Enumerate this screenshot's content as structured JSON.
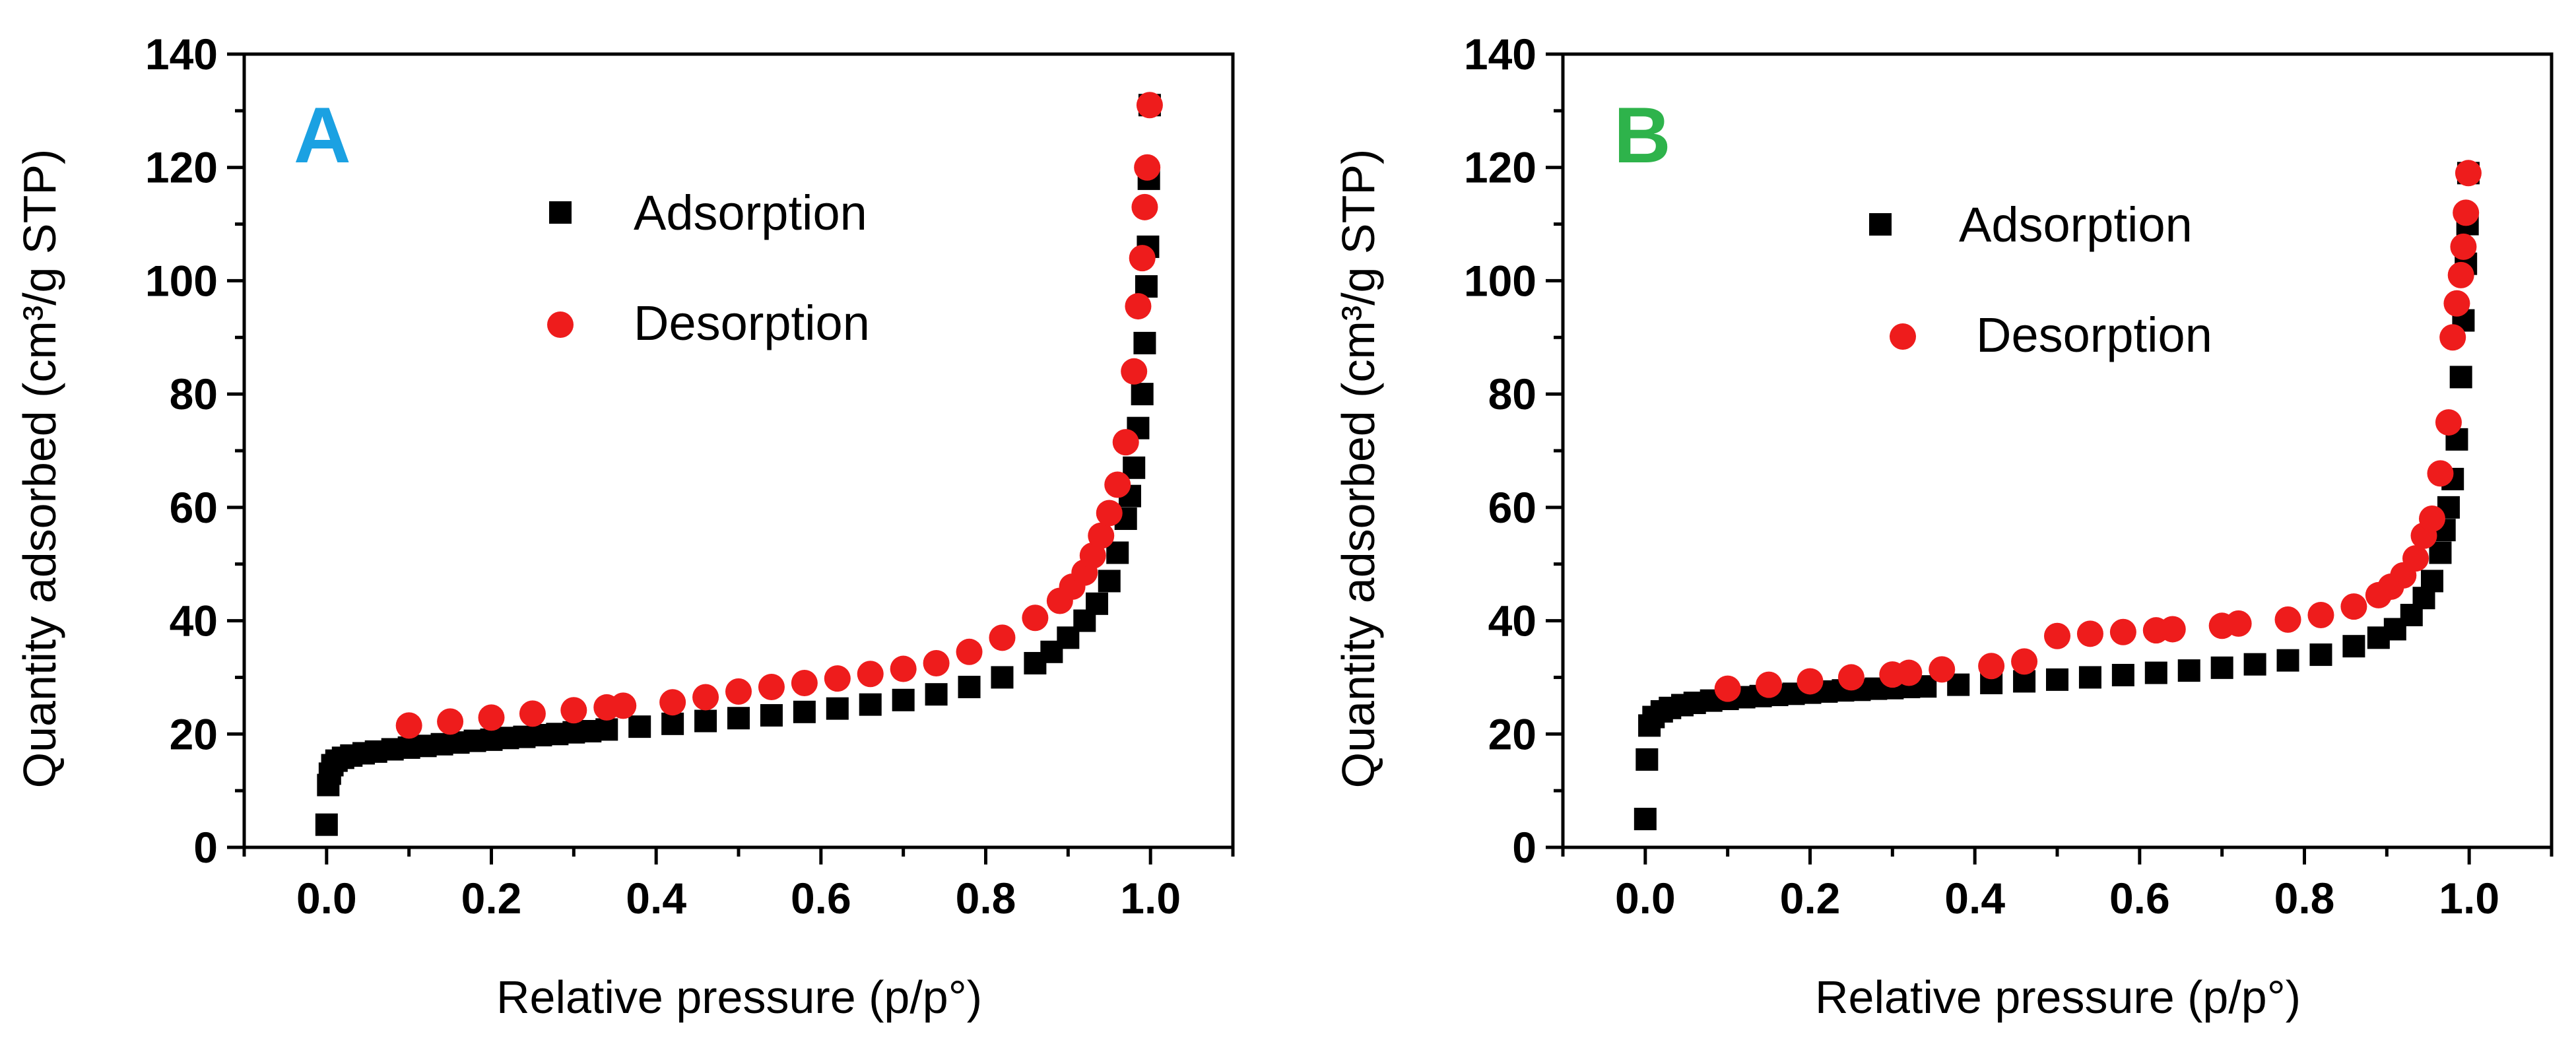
{
  "chart_data": [
    {
      "type": "scatter",
      "panel_label": "A",
      "panel_label_color": "#1ba1e2",
      "xlabel": "Relative pressure (p/p°)",
      "ylabel": "Quantity adsorbed (cm³/g STP)",
      "xlim": [
        -0.1,
        1.1
      ],
      "ylim": [
        0,
        140
      ],
      "xticks": [
        "0.0",
        "0.2",
        "0.4",
        "0.6",
        "0.8",
        "1.0"
      ],
      "yticks": [
        "0",
        "20",
        "40",
        "60",
        "80",
        "100",
        "120",
        "140"
      ],
      "legend_position": "upper-left",
      "series": [
        {
          "name": "Adsorption",
          "marker": "square",
          "color": "#000000",
          "points": [
            [
              0.0,
              4
            ],
            [
              0.002,
              11
            ],
            [
              0.004,
              13
            ],
            [
              0.007,
              14.5
            ],
            [
              0.012,
              15.3
            ],
            [
              0.02,
              15.8
            ],
            [
              0.03,
              16.2
            ],
            [
              0.045,
              16.6
            ],
            [
              0.06,
              16.9
            ],
            [
              0.08,
              17.3
            ],
            [
              0.1,
              17.6
            ],
            [
              0.12,
              17.9
            ],
            [
              0.14,
              18.2
            ],
            [
              0.16,
              18.5
            ],
            [
              0.18,
              18.8
            ],
            [
              0.2,
              19
            ],
            [
              0.22,
              19.3
            ],
            [
              0.24,
              19.5
            ],
            [
              0.26,
              19.8
            ],
            [
              0.28,
              20
            ],
            [
              0.3,
              20.3
            ],
            [
              0.32,
              20.5
            ],
            [
              0.34,
              20.8
            ],
            [
              0.38,
              21.3
            ],
            [
              0.42,
              21.8
            ],
            [
              0.46,
              22.3
            ],
            [
              0.5,
              22.8
            ],
            [
              0.54,
              23.3
            ],
            [
              0.58,
              23.9
            ],
            [
              0.62,
              24.5
            ],
            [
              0.66,
              25.2
            ],
            [
              0.7,
              26
            ],
            [
              0.74,
              27
            ],
            [
              0.78,
              28.3
            ],
            [
              0.82,
              30
            ],
            [
              0.86,
              32.5
            ],
            [
              0.88,
              34.5
            ],
            [
              0.9,
              37
            ],
            [
              0.92,
              40
            ],
            [
              0.935,
              43
            ],
            [
              0.95,
              47
            ],
            [
              0.96,
              52
            ],
            [
              0.97,
              58
            ],
            [
              0.975,
              62
            ],
            [
              0.98,
              67
            ],
            [
              0.985,
              74
            ],
            [
              0.99,
              80
            ],
            [
              0.993,
              89
            ],
            [
              0.995,
              99
            ],
            [
              0.997,
              106
            ],
            [
              0.998,
              118
            ],
            [
              0.999,
              131
            ]
          ]
        },
        {
          "name": "Desorption",
          "marker": "circle",
          "color": "#ee1c1c",
          "points": [
            [
              0.1,
              21.5
            ],
            [
              0.15,
              22.2
            ],
            [
              0.2,
              22.9
            ],
            [
              0.25,
              23.6
            ],
            [
              0.3,
              24.2
            ],
            [
              0.34,
              24.7
            ],
            [
              0.36,
              25
            ],
            [
              0.42,
              25.6
            ],
            [
              0.46,
              26.5
            ],
            [
              0.5,
              27.5
            ],
            [
              0.54,
              28.3
            ],
            [
              0.58,
              29
            ],
            [
              0.62,
              29.8
            ],
            [
              0.66,
              30.6
            ],
            [
              0.7,
              31.5
            ],
            [
              0.74,
              32.5
            ],
            [
              0.78,
              34.5
            ],
            [
              0.82,
              37
            ],
            [
              0.86,
              40.5
            ],
            [
              0.89,
              43.5
            ],
            [
              0.905,
              46
            ],
            [
              0.92,
              48.5
            ],
            [
              0.93,
              51.5
            ],
            [
              0.94,
              55
            ],
            [
              0.95,
              59
            ],
            [
              0.96,
              64
            ],
            [
              0.97,
              71.5
            ],
            [
              0.98,
              84
            ],
            [
              0.985,
              95.5
            ],
            [
              0.99,
              104
            ],
            [
              0.993,
              113
            ],
            [
              0.996,
              120
            ],
            [
              0.999,
              131
            ]
          ]
        }
      ]
    },
    {
      "type": "scatter",
      "panel_label": "B",
      "panel_label_color": "#2eb34b",
      "xlabel": "Relative pressure (p/p°)",
      "ylabel": "Quantity adsorbed (cm³/g STP)",
      "xlim": [
        -0.1,
        1.1
      ],
      "ylim": [
        0,
        140
      ],
      "xticks": [
        "0.0",
        "0.2",
        "0.4",
        "0.6",
        "0.8",
        "1.0"
      ],
      "yticks": [
        "0",
        "20",
        "40",
        "60",
        "80",
        "100",
        "120",
        "140"
      ],
      "legend_position": "upper-left",
      "series": [
        {
          "name": "Adsorption",
          "marker": "square",
          "color": "#000000",
          "points": [
            [
              0.0,
              5
            ],
            [
              0.002,
              15.5
            ],
            [
              0.005,
              21.5
            ],
            [
              0.01,
              23
            ],
            [
              0.02,
              24
            ],
            [
              0.03,
              24.6
            ],
            [
              0.045,
              25.1
            ],
            [
              0.06,
              25.5
            ],
            [
              0.08,
              25.9
            ],
            [
              0.1,
              26.2
            ],
            [
              0.12,
              26.5
            ],
            [
              0.14,
              26.7
            ],
            [
              0.16,
              26.9
            ],
            [
              0.18,
              27.1
            ],
            [
              0.2,
              27.3
            ],
            [
              0.22,
              27.5
            ],
            [
              0.24,
              27.7
            ],
            [
              0.26,
              27.8
            ],
            [
              0.28,
              28
            ],
            [
              0.3,
              28.1
            ],
            [
              0.32,
              28.3
            ],
            [
              0.34,
              28.4
            ],
            [
              0.38,
              28.7
            ],
            [
              0.42,
              29
            ],
            [
              0.46,
              29.3
            ],
            [
              0.5,
              29.6
            ],
            [
              0.54,
              30
            ],
            [
              0.58,
              30.4
            ],
            [
              0.62,
              30.8
            ],
            [
              0.66,
              31.2
            ],
            [
              0.7,
              31.7
            ],
            [
              0.74,
              32.3
            ],
            [
              0.78,
              33
            ],
            [
              0.82,
              34
            ],
            [
              0.86,
              35.5
            ],
            [
              0.89,
              37
            ],
            [
              0.91,
              38.5
            ],
            [
              0.93,
              41
            ],
            [
              0.945,
              44
            ],
            [
              0.955,
              47
            ],
            [
              0.965,
              52
            ],
            [
              0.97,
              56
            ],
            [
              0.975,
              60
            ],
            [
              0.98,
              65
            ],
            [
              0.985,
              72
            ],
            [
              0.99,
              83
            ],
            [
              0.993,
              93
            ],
            [
              0.996,
              103
            ],
            [
              0.998,
              110
            ],
            [
              0.999,
              119
            ]
          ]
        },
        {
          "name": "Desorption",
          "marker": "circle",
          "color": "#ee1c1c",
          "points": [
            [
              0.1,
              28
            ],
            [
              0.15,
              28.7
            ],
            [
              0.2,
              29.3
            ],
            [
              0.25,
              30
            ],
            [
              0.3,
              30.5
            ],
            [
              0.32,
              30.8
            ],
            [
              0.36,
              31.4
            ],
            [
              0.42,
              32
            ],
            [
              0.46,
              32.8
            ],
            [
              0.5,
              37.3
            ],
            [
              0.54,
              37.7
            ],
            [
              0.58,
              38
            ],
            [
              0.62,
              38.3
            ],
            [
              0.64,
              38.5
            ],
            [
              0.7,
              39.1
            ],
            [
              0.72,
              39.5
            ],
            [
              0.78,
              40.2
            ],
            [
              0.82,
              41
            ],
            [
              0.86,
              42.5
            ],
            [
              0.89,
              44.5
            ],
            [
              0.905,
              46
            ],
            [
              0.92,
              48
            ],
            [
              0.935,
              51
            ],
            [
              0.945,
              55
            ],
            [
              0.955,
              58
            ],
            [
              0.965,
              66
            ],
            [
              0.975,
              75
            ],
            [
              0.98,
              90
            ],
            [
              0.985,
              96
            ],
            [
              0.99,
              101
            ],
            [
              0.993,
              106
            ],
            [
              0.996,
              112
            ],
            [
              0.999,
              119
            ]
          ]
        }
      ]
    }
  ]
}
